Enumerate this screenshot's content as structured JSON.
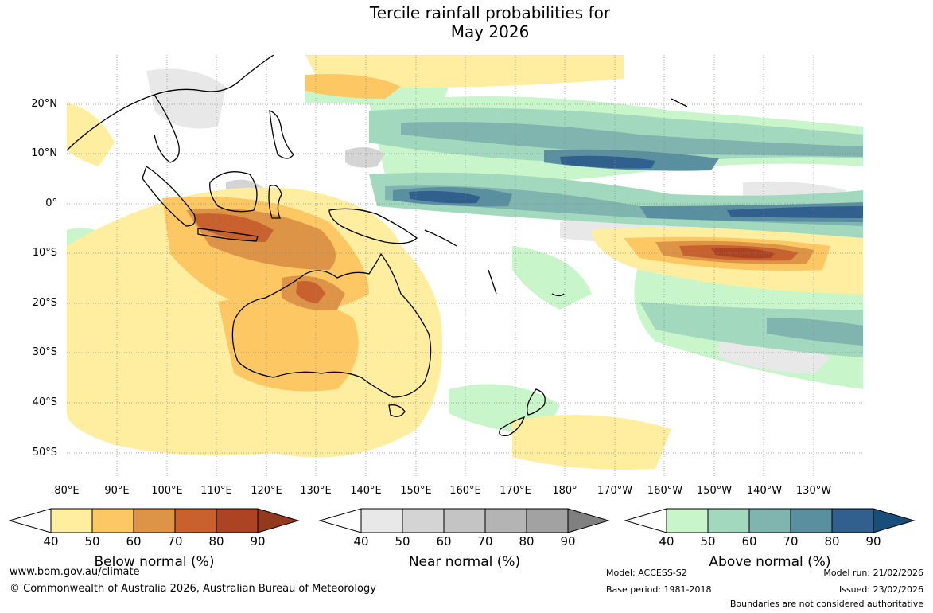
{
  "title_line1": "Tercile rainfall probabilities for",
  "title_line2": "May 2026",
  "lat_labels": [
    "20°N",
    "10°N",
    "0°",
    "10°S",
    "20°S",
    "30°S",
    "40°S",
    "50°S"
  ],
  "lon_labels": [
    "80°E",
    "90°E",
    "100°E",
    "110°E",
    "120°E",
    "130°E",
    "140°E",
    "150°E",
    "160°E",
    "170°E",
    "180°",
    "170°W",
    "160°W",
    "150°W",
    "140°W",
    "130°W"
  ],
  "colorbars": [
    {
      "label": "Below normal (%)",
      "ticks": [
        "40",
        "50",
        "60",
        "70",
        "80",
        "90"
      ],
      "colors": [
        "#ffeea0",
        "#fdc864",
        "#de9446",
        "#c8612e",
        "#ac4322",
        "#923a1e"
      ]
    },
    {
      "label": "Near normal (%)",
      "ticks": [
        "40",
        "50",
        "60",
        "70",
        "80",
        "90"
      ],
      "colors": [
        "#e8e8e8",
        "#d4d4d4",
        "#c4c4c4",
        "#b4b4b4",
        "#a2a2a2",
        "#808080"
      ]
    },
    {
      "label": "Above normal (%)",
      "ticks": [
        "40",
        "50",
        "60",
        "70",
        "80",
        "90"
      ],
      "colors": [
        "#c8f5ca",
        "#a2d9be",
        "#80b4ae",
        "#5a8fa0",
        "#32608e",
        "#1a4e7a"
      ]
    }
  ],
  "footer": {
    "url": "www.bom.gov.au/climate",
    "copyright": "© Commonwealth of Australia 2026, Australian Bureau of Meteorology",
    "model": "Model: ACCESS-S2",
    "base_period": "Base period: 1981-2018",
    "model_run": "Model run: 21/02/2026",
    "issued": "Issued: 23/02/2026",
    "disclaimer": "Boundaries are not considered authoritative"
  }
}
